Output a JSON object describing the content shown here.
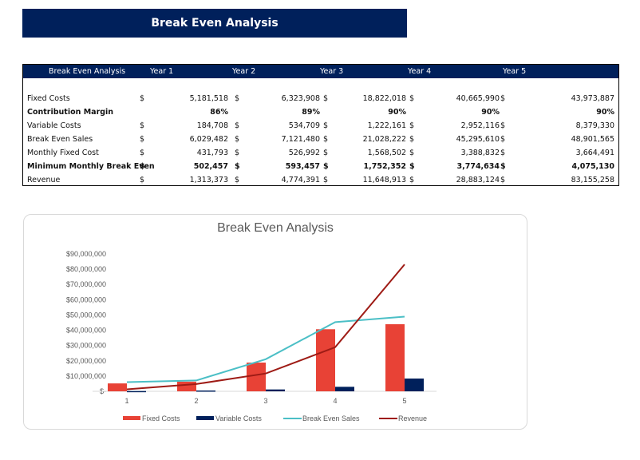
{
  "banner": {
    "title": "Break Even Analysis"
  },
  "table": {
    "headers": [
      "Break Even Analysis",
      "Year 1",
      "Year 2",
      "Year 3",
      "Year 4",
      "Year 5"
    ],
    "currency_symbol": "$",
    "rows": [
      {
        "label": "Fixed Costs",
        "bold": false,
        "currency": true,
        "values": [
          "5,181,518",
          "6,323,908",
          "18,822,018",
          "40,665,990",
          "43,973,887"
        ]
      },
      {
        "label": "Contribution Margin",
        "bold": true,
        "currency": false,
        "values": [
          "86%",
          "89%",
          "90%",
          "90%",
          "90%"
        ]
      },
      {
        "label": "Variable Costs",
        "bold": false,
        "currency": true,
        "values": [
          "184,708",
          "534,709",
          "1,222,161",
          "2,952,116",
          "8,379,330"
        ]
      },
      {
        "label": "Break Even Sales",
        "bold": false,
        "currency": true,
        "values": [
          "6,029,482",
          "7,121,480",
          "21,028,222",
          "45,295,610",
          "48,901,565"
        ]
      },
      {
        "label": "Monthly Fixed Cost",
        "bold": false,
        "currency": true,
        "values": [
          "431,793",
          "526,992",
          "1,568,502",
          "3,388,832",
          "3,664,491"
        ]
      },
      {
        "label": "Minimum Monthly Break Even",
        "bold": true,
        "currency": true,
        "values": [
          "502,457",
          "593,457",
          "1,752,352",
          "3,774,634",
          "4,075,130"
        ]
      },
      {
        "label": "Revenue",
        "bold": false,
        "currency": true,
        "values": [
          "1,313,373",
          "4,774,391",
          "11,648,913",
          "28,883,124",
          "83,155,258"
        ]
      }
    ]
  },
  "chart_data": {
    "type": "bar",
    "title": "Break Even Analysis",
    "xlabel": "",
    "ylabel": "",
    "categories": [
      "1",
      "2",
      "3",
      "4",
      "5"
    ],
    "ylim": [
      0,
      90000000
    ],
    "y_ticks": [
      "$-",
      "$10,000,000",
      "$20,000,000",
      "$30,000,000",
      "$40,000,000",
      "$50,000,000",
      "$60,000,000",
      "$70,000,000",
      "$80,000,000",
      "$90,000,000"
    ],
    "grid": false,
    "legend_position": "bottom",
    "series": [
      {
        "name": "Fixed Costs",
        "type": "bar",
        "color": "#e84236",
        "values": [
          5181518,
          6323908,
          18822018,
          40665990,
          43973887
        ]
      },
      {
        "name": "Variable Costs",
        "type": "bar",
        "color": "#00205b",
        "values": [
          184708,
          534709,
          1222161,
          2952116,
          8379330
        ]
      },
      {
        "name": "Break Even Sales",
        "type": "line",
        "color": "#4bbfc6",
        "values": [
          6029482,
          7121480,
          21028222,
          45295610,
          48901565
        ]
      },
      {
        "name": "Revenue",
        "type": "line",
        "color": "#9e1b15",
        "values": [
          1313373,
          4774391,
          11648913,
          28883124,
          83155258
        ]
      }
    ]
  }
}
